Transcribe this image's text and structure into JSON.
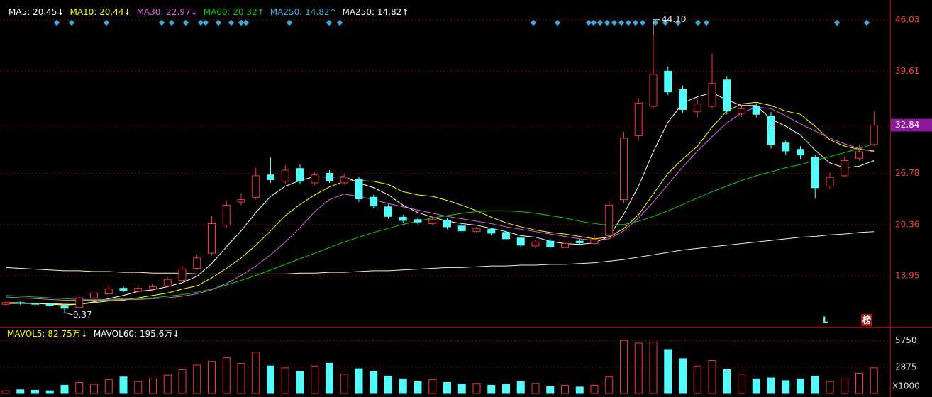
{
  "chart_data": {
    "type": "candlestick",
    "open": [
      10.4,
      10.6,
      10.5,
      10.4,
      10.2,
      10.0,
      11.2,
      11.7,
      12.4,
      12.0,
      12.3,
      12.7,
      13.4,
      14.9,
      16.8,
      20.3,
      23.2,
      23.8,
      26.6,
      25.8,
      27.4,
      25.6,
      26.8,
      25.6,
      26.0,
      23.8,
      22.6,
      21.3,
      21.0,
      20.5,
      20.9,
      20.2,
      19.5,
      19.8,
      19.4,
      18.7,
      17.7,
      18.3,
      17.5,
      18.3,
      18.0,
      19.0,
      23.5,
      31.5,
      35.2,
      39.6,
      37.3,
      34.5,
      35.2,
      38.5,
      34.3,
      35.2,
      34.0,
      30.6,
      29.8,
      28.8,
      25.2,
      26.5,
      28.7,
      30.4
    ],
    "high": [
      10.9,
      10.8,
      10.7,
      10.6,
      10.3,
      11.6,
      12.1,
      12.8,
      12.7,
      12.8,
      13.0,
      13.8,
      15.2,
      16.6,
      21.5,
      23.4,
      24.3,
      27.5,
      28.8,
      27.8,
      27.9,
      26.9,
      27.2,
      26.7,
      26.4,
      24.1,
      22.9,
      21.6,
      21.3,
      21.4,
      21.2,
      20.5,
      20.1,
      20.0,
      19.6,
      18.9,
      18.5,
      18.6,
      18.3,
      18.6,
      19.1,
      23.3,
      32.0,
      36.2,
      44.1,
      40.2,
      37.8,
      36.0,
      41.8,
      39.0,
      35.4,
      35.6,
      34.5,
      30.9,
      30.2,
      29.1,
      26.9,
      28.9,
      30.4,
      34.6
    ],
    "low": [
      10.2,
      10.3,
      10.2,
      10.0,
      9.37,
      9.9,
      11.0,
      11.6,
      11.9,
      11.8,
      12.1,
      12.5,
      13.2,
      14.7,
      16.5,
      20.0,
      22.8,
      23.5,
      25.6,
      25.5,
      25.4,
      25.3,
      25.6,
      25.4,
      23.2,
      22.4,
      21.1,
      20.6,
      20.4,
      20.3,
      19.8,
      19.4,
      19.3,
      19.0,
      18.4,
      17.5,
      17.4,
      17.3,
      17.3,
      17.8,
      17.9,
      18.8,
      23.1,
      30.9,
      34.9,
      36.6,
      34.3,
      33.8,
      34.9,
      34.2,
      33.9,
      33.8,
      29.9,
      29.1,
      28.6,
      23.6,
      24.9,
      26.3,
      28.4,
      30.2
    ],
    "close": [
      10.6,
      10.5,
      10.4,
      10.2,
      9.9,
      11.2,
      11.8,
      12.3,
      12.1,
      12.4,
      12.6,
      13.5,
      14.8,
      16.2,
      20.5,
      22.8,
      23.5,
      26.5,
      26.0,
      27.2,
      25.8,
      26.6,
      25.9,
      26.3,
      23.6,
      22.7,
      21.4,
      20.9,
      20.7,
      21.0,
      20.1,
      19.6,
      19.9,
      19.3,
      18.6,
      17.8,
      18.2,
      17.6,
      18.0,
      18.1,
      18.5,
      22.8,
      31.2,
      35.6,
      39.2,
      37.0,
      34.8,
      35.5,
      38.1,
      34.6,
      34.9,
      34.2,
      30.4,
      29.6,
      29.1,
      25.0,
      26.3,
      28.4,
      29.5,
      32.84
    ],
    "ylim": [
      7.66,
      46.74
    ],
    "yticks": [
      46.03,
      39.61,
      26.78,
      20.36,
      13.95
    ],
    "grid": true,
    "up_color": "#ff3232",
    "down_color": "#54fcfc",
    "series": [
      {
        "name": "MA5: 20.45↓",
        "color": "#ffffff",
        "values": [
          10.5,
          10.5,
          10.5,
          10.4,
          10.3,
          10.4,
          10.7,
          11.1,
          11.5,
          12.0,
          12.2,
          12.6,
          13.1,
          13.9,
          15.5,
          17.6,
          19.6,
          21.9,
          23.9,
          25.2,
          25.9,
          26.4,
          26.3,
          26.4,
          25.6,
          25.0,
          24.1,
          22.8,
          21.9,
          21.3,
          20.8,
          20.5,
          20.3,
          19.9,
          19.5,
          19.0,
          18.8,
          18.3,
          18.0,
          17.9,
          18.1,
          18.9,
          21.7,
          25.2,
          29.5,
          33.2,
          35.6,
          36.4,
          36.9,
          36.0,
          35.3,
          35.3,
          33.6,
          32.7,
          31.6,
          29.7,
          28.1,
          27.5,
          27.7,
          28.4
        ]
      },
      {
        "name": "MA10: 20.44↓",
        "color": "#ffff00",
        "values": [
          10.6,
          10.6,
          10.5,
          10.5,
          10.4,
          10.4,
          10.6,
          10.8,
          10.9,
          11.2,
          11.5,
          11.8,
          12.3,
          12.7,
          13.7,
          14.9,
          16.2,
          17.8,
          19.6,
          21.5,
          22.9,
          24.1,
          25.1,
          25.8,
          25.9,
          25.8,
          25.4,
          24.5,
          24.1,
          23.9,
          23.4,
          22.8,
          22.1,
          21.3,
          20.6,
          20.1,
          19.7,
          19.4,
          19.2,
          18.9,
          18.6,
          18.8,
          19.9,
          21.6,
          24.2,
          26.8,
          28.6,
          30.2,
          32.6,
          34.6,
          35.5,
          35.7,
          35.3,
          34.6,
          34.2,
          32.7,
          31.0,
          30.2,
          29.8,
          29.6
        ]
      },
      {
        "name": "MA30: 22.97↓",
        "color": "#e060e0",
        "values": [
          11.3,
          11.2,
          11.1,
          11.0,
          10.9,
          10.9,
          10.9,
          10.9,
          11.0,
          11.0,
          11.1,
          11.2,
          11.4,
          11.7,
          12.2,
          13.0,
          14.0,
          15.2,
          16.6,
          18.2,
          20.0,
          22.0,
          23.5,
          24.2,
          23.9,
          23.5,
          23.0,
          22.6,
          22.2,
          21.8,
          21.4,
          21.1,
          20.8,
          20.5,
          20.1,
          19.8,
          19.5,
          19.2,
          18.9,
          18.6,
          18.4,
          18.6,
          19.6,
          21.2,
          23.2,
          25.4,
          27.6,
          29.6,
          31.4,
          33.1,
          34.4,
          35.1,
          34.9,
          34.0,
          33.0,
          32.1,
          31.2,
          30.5,
          29.9,
          29.5
        ]
      },
      {
        "name": "MA60: 20.32↑",
        "color": "#00d000",
        "values": [
          11.5,
          11.4,
          11.3,
          11.2,
          11.1,
          11.0,
          11.0,
          11.0,
          11.1,
          11.1,
          11.2,
          11.4,
          11.6,
          11.9,
          12.3,
          12.8,
          13.4,
          14.0,
          14.7,
          15.4,
          16.1,
          16.8,
          17.5,
          18.2,
          18.8,
          19.4,
          19.9,
          20.4,
          20.8,
          21.2,
          21.5,
          21.8,
          22.0,
          22.1,
          22.1,
          22.0,
          21.8,
          21.5,
          21.2,
          20.8,
          20.5,
          20.3,
          20.4,
          20.8,
          21.4,
          22.1,
          22.9,
          23.7,
          24.5,
          25.2,
          25.9,
          26.5,
          27.0,
          27.5,
          27.9,
          28.4,
          28.9,
          29.4,
          29.9,
          30.5
        ]
      },
      {
        "name": "MA250: 14.82↑",
        "color": "#f4f0c8",
        "legend_color": "#3ab0e0",
        "values": [
          15.0,
          14.9,
          14.8,
          14.7,
          14.6,
          14.6,
          14.5,
          14.5,
          14.4,
          14.4,
          14.3,
          14.3,
          14.3,
          14.2,
          14.2,
          14.2,
          14.2,
          14.2,
          14.2,
          14.2,
          14.3,
          14.3,
          14.4,
          14.4,
          14.5,
          14.6,
          14.6,
          14.7,
          14.8,
          14.9,
          15.0,
          15.0,
          15.1,
          15.2,
          15.2,
          15.3,
          15.3,
          15.4,
          15.4,
          15.5,
          15.6,
          15.8,
          16.0,
          16.3,
          16.6,
          16.9,
          17.2,
          17.4,
          17.6,
          17.8,
          18.0,
          18.2,
          18.4,
          18.6,
          18.8,
          18.9,
          19.1,
          19.2,
          19.4,
          19.5
        ]
      }
    ],
    "extra_legend": {
      "name": "MA250: 14.82↑",
      "color": "#ffffff"
    },
    "annotations": [
      {
        "label": "44.10",
        "value": 44.1
      },
      {
        "label": "9.37",
        "value": 9.37
      }
    ],
    "volume": {
      "values": [
        300,
        400,
        350,
        300,
        900,
        1200,
        1000,
        1500,
        1800,
        1300,
        1600,
        2000,
        2600,
        3100,
        3500,
        3900,
        3300,
        4500,
        3000,
        2800,
        2400,
        3000,
        3300,
        2100,
        2700,
        2400,
        1900,
        1600,
        1300,
        1500,
        1200,
        1000,
        1100,
        900,
        1000,
        1300,
        1100,
        800,
        900,
        700,
        900,
        1800,
        5800,
        5500,
        5600,
        4800,
        3800,
        3000,
        3600,
        2600,
        2100,
        1600,
        1700,
        1400,
        1600,
        1900,
        1300,
        1600,
        2200,
        2800
      ],
      "ylim": [
        0,
        7200
      ],
      "yticks": [
        5750,
        2875
      ],
      "unit_label": "X1000",
      "legend": [
        {
          "name": "MAVOL5: 82.75万↓",
          "color": "#ffff00"
        },
        {
          "name": "MAVOL60: 195.6万↓",
          "color": "#ffffff"
        }
      ]
    },
    "markers": [
      {
        "text": "L",
        "color": "#54fcfc"
      },
      {
        "text": "榜",
        "color": "#ffffff"
      }
    ]
  }
}
